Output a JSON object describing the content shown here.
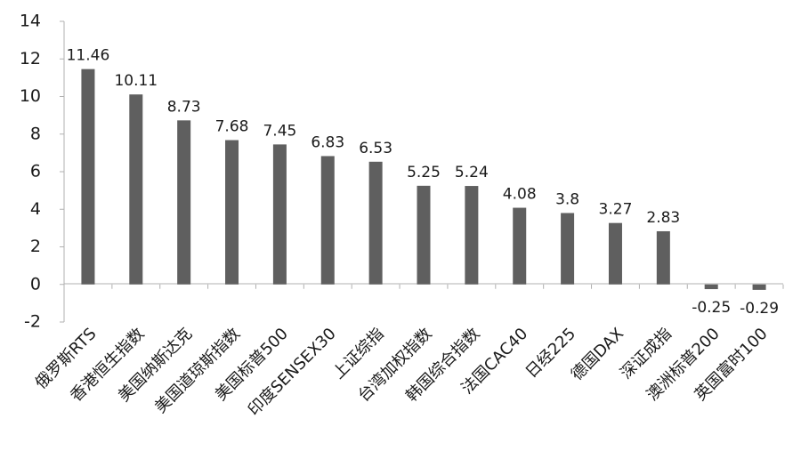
{
  "chart_data": {
    "type": "bar",
    "title": "",
    "xlabel": "",
    "ylabel": "",
    "ylim": [
      -2,
      14
    ],
    "yticks": [
      14,
      12,
      10,
      8,
      6,
      4,
      2,
      0,
      -2
    ],
    "ytick_labels": [
      "14",
      "12",
      "10",
      "8",
      "6",
      "4",
      "2",
      "0",
      "-2"
    ],
    "grid": false,
    "legend": "none",
    "bar_color": "#5f5f5f",
    "categories": [
      "俄罗斯RTS",
      "香港恒生指数",
      "美国纳斯达克",
      "美国道琼斯指数",
      "美国标普500",
      "印度SENSEX30",
      "上证综指",
      "台湾加权指数",
      "韩国综合指数",
      "法国CAC40",
      "日经225",
      "德国DAX",
      "深证成指",
      "澳洲标普200",
      "英国富时100"
    ],
    "values": [
      11.46,
      10.11,
      8.73,
      7.68,
      7.45,
      6.83,
      6.53,
      5.25,
      5.24,
      4.08,
      3.8,
      3.27,
      2.83,
      -0.25,
      -0.29
    ],
    "data_labels": [
      "11.46",
      "10.11",
      "8.73",
      "7.68",
      "7.45",
      "6.83",
      "6.53",
      "5.25",
      "5.24",
      "4.08",
      "3.8",
      "3.27",
      "2.83",
      "-0.25",
      "-0.29"
    ]
  }
}
